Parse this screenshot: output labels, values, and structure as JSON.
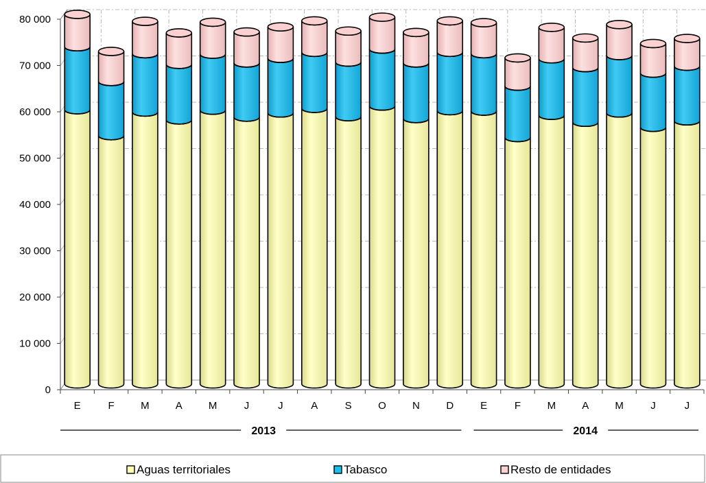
{
  "chart_data": {
    "type": "bar",
    "stacked": true,
    "categories": [
      "E",
      "F",
      "M",
      "A",
      "M",
      "J",
      "J",
      "A",
      "S",
      "O",
      "N",
      "D",
      "E",
      "F",
      "M",
      "A",
      "M",
      "J",
      "J"
    ],
    "year_groups": [
      {
        "label": "2013",
        "from": 0,
        "to": 11
      },
      {
        "label": "2014",
        "from": 12,
        "to": 18
      }
    ],
    "series": [
      {
        "name": "Aguas territoriales",
        "color": "#FFFFB4",
        "values": [
          59200,
          53600,
          58700,
          57000,
          59100,
          57600,
          58500,
          59500,
          57700,
          60000,
          57300,
          59000,
          58900,
          53200,
          58000,
          56500,
          58500,
          55400,
          56800
        ]
      },
      {
        "name": "Tabasco",
        "color": "#1EBEEC",
        "values": [
          13600,
          11700,
          12600,
          12000,
          12100,
          11700,
          11800,
          12100,
          11800,
          12300,
          12000,
          12600,
          12400,
          11100,
          12200,
          11800,
          12400,
          11700,
          11800
        ]
      },
      {
        "name": "Resto de entidades",
        "color": "#FBD0D0",
        "values": [
          7000,
          6500,
          7000,
          6800,
          6900,
          6700,
          6800,
          6800,
          6700,
          6900,
          6600,
          6800,
          6700,
          6100,
          6800,
          6400,
          6700,
          6400,
          6000
        ]
      }
    ],
    "ylim": [
      0,
      80000
    ],
    "yticks": [
      0,
      10000,
      20000,
      30000,
      40000,
      50000,
      60000,
      70000,
      80000
    ],
    "ytick_labels": [
      "0",
      "10 000",
      "20 000",
      "30 000",
      "40 000",
      "50 000",
      "60 000",
      "70 000",
      "80 000"
    ],
    "grid": true,
    "legend_position": "bottom",
    "title": "",
    "xlabel": "",
    "ylabel": ""
  }
}
